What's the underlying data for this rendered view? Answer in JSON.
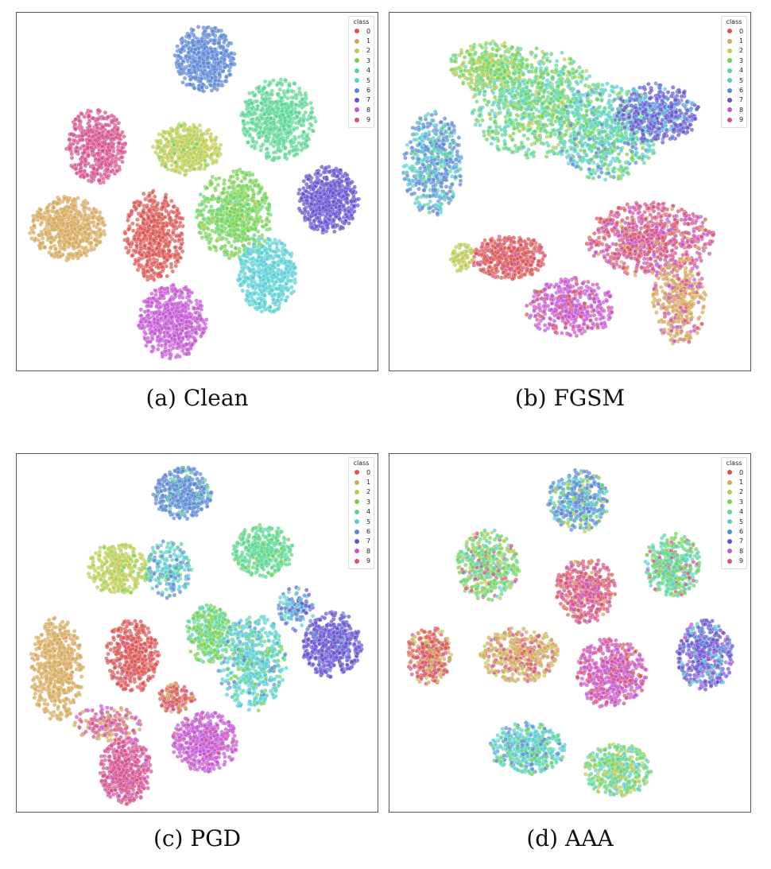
{
  "chart_data": [
    {
      "type": "scatter",
      "caption": "(a) Clean",
      "legend": {
        "title": "class",
        "placement": "top-right"
      },
      "clusters": [
        {
          "cls": 6,
          "cx": 0.52,
          "cy": 0.13,
          "rx": 0.08,
          "ry": 0.09,
          "n": 520,
          "mix": [
            [
              6,
              1
            ]
          ]
        },
        {
          "cls": 4,
          "cx": 0.72,
          "cy": 0.3,
          "rx": 0.1,
          "ry": 0.11,
          "n": 600,
          "mix": [
            [
              4,
              1
            ]
          ]
        },
        {
          "cls": 9,
          "cx": 0.22,
          "cy": 0.37,
          "rx": 0.08,
          "ry": 0.1,
          "n": 500,
          "mix": [
            [
              9,
              1
            ]
          ]
        },
        {
          "cls": 2,
          "cx": 0.47,
          "cy": 0.38,
          "rx": 0.09,
          "ry": 0.07,
          "n": 500,
          "mix": [
            [
              2,
              0.92
            ],
            [
              3,
              0.08
            ]
          ]
        },
        {
          "cls": 7,
          "cx": 0.86,
          "cy": 0.52,
          "rx": 0.08,
          "ry": 0.09,
          "n": 560,
          "mix": [
            [
              7,
              1
            ]
          ]
        },
        {
          "cls": 1,
          "cx": 0.14,
          "cy": 0.6,
          "rx": 0.1,
          "ry": 0.085,
          "n": 600,
          "mix": [
            [
              1,
              1
            ]
          ]
        },
        {
          "cls": 0,
          "cx": 0.38,
          "cy": 0.62,
          "rx": 0.08,
          "ry": 0.12,
          "n": 560,
          "mix": [
            [
              0,
              1
            ]
          ]
        },
        {
          "cls": 3,
          "cx": 0.6,
          "cy": 0.56,
          "rx": 0.1,
          "ry": 0.12,
          "n": 620,
          "mix": [
            [
              3,
              0.85
            ],
            [
              4,
              0.1
            ],
            [
              2,
              0.05
            ]
          ]
        },
        {
          "cls": 5,
          "cx": 0.69,
          "cy": 0.73,
          "rx": 0.08,
          "ry": 0.1,
          "n": 500,
          "mix": [
            [
              5,
              1
            ]
          ]
        },
        {
          "cls": 8,
          "cx": 0.43,
          "cy": 0.86,
          "rx": 0.09,
          "ry": 0.1,
          "n": 620,
          "mix": [
            [
              8,
              1
            ]
          ]
        }
      ]
    },
    {
      "type": "scatter",
      "caption": "(b) FGSM",
      "legend": {
        "title": "class",
        "placement": "top-right"
      },
      "clusters": [
        {
          "cls": 4,
          "cx": 0.4,
          "cy": 0.25,
          "rx": 0.17,
          "ry": 0.15,
          "n": 900,
          "mix": [
            [
              4,
              0.35
            ],
            [
              3,
              0.3
            ],
            [
              5,
              0.2
            ],
            [
              2,
              0.15
            ]
          ]
        },
        {
          "cls": 5,
          "cx": 0.6,
          "cy": 0.33,
          "rx": 0.14,
          "ry": 0.13,
          "n": 700,
          "mix": [
            [
              5,
              0.35
            ],
            [
              4,
              0.3
            ],
            [
              3,
              0.2
            ],
            [
              6,
              0.15
            ]
          ]
        },
        {
          "cls": 6,
          "cx": 0.12,
          "cy": 0.42,
          "rx": 0.08,
          "ry": 0.14,
          "n": 500,
          "mix": [
            [
              6,
              0.6
            ],
            [
              5,
              0.25
            ],
            [
              4,
              0.15
            ]
          ]
        },
        {
          "cls": 7,
          "cx": 0.74,
          "cy": 0.28,
          "rx": 0.11,
          "ry": 0.08,
          "n": 450,
          "mix": [
            [
              7,
              0.6
            ],
            [
              6,
              0.25
            ],
            [
              5,
              0.15
            ]
          ]
        },
        {
          "cls": 0,
          "cx": 0.33,
          "cy": 0.68,
          "rx": 0.1,
          "ry": 0.06,
          "n": 400,
          "mix": [
            [
              0,
              0.8
            ],
            [
              9,
              0.2
            ]
          ]
        },
        {
          "cls": 9,
          "cx": 0.72,
          "cy": 0.63,
          "rx": 0.17,
          "ry": 0.1,
          "n": 800,
          "mix": [
            [
              9,
              0.5
            ],
            [
              0,
              0.2
            ],
            [
              8,
              0.2
            ],
            [
              1,
              0.1
            ]
          ]
        },
        {
          "cls": 8,
          "cx": 0.5,
          "cy": 0.82,
          "rx": 0.12,
          "ry": 0.08,
          "n": 450,
          "mix": [
            [
              8,
              0.75
            ],
            [
              9,
              0.15
            ],
            [
              0,
              0.1
            ]
          ]
        },
        {
          "cls": 1,
          "cx": 0.8,
          "cy": 0.8,
          "rx": 0.07,
          "ry": 0.12,
          "n": 400,
          "mix": [
            [
              1,
              0.75
            ],
            [
              9,
              0.15
            ],
            [
              8,
              0.1
            ]
          ]
        },
        {
          "cls": 2,
          "cx": 0.2,
          "cy": 0.68,
          "rx": 0.03,
          "ry": 0.04,
          "n": 80,
          "mix": [
            [
              2,
              1
            ]
          ]
        },
        {
          "cls": 3,
          "cx": 0.27,
          "cy": 0.15,
          "rx": 0.1,
          "ry": 0.07,
          "n": 300,
          "mix": [
            [
              3,
              0.5
            ],
            [
              2,
              0.3
            ],
            [
              4,
              0.2
            ]
          ]
        }
      ]
    },
    {
      "type": "scatter",
      "caption": "(c) PGD",
      "legend": {
        "title": "class",
        "placement": "top-right"
      },
      "clusters": [
        {
          "cls": 6,
          "cx": 0.46,
          "cy": 0.11,
          "rx": 0.08,
          "ry": 0.07,
          "n": 420,
          "mix": [
            [
              6,
              0.9
            ],
            [
              4,
              0.1
            ]
          ]
        },
        {
          "cls": 4,
          "cx": 0.68,
          "cy": 0.27,
          "rx": 0.08,
          "ry": 0.07,
          "n": 400,
          "mix": [
            [
              4,
              0.85
            ],
            [
              3,
              0.15
            ]
          ]
        },
        {
          "cls": 2,
          "cx": 0.28,
          "cy": 0.32,
          "rx": 0.08,
          "ry": 0.07,
          "n": 360,
          "mix": [
            [
              2,
              0.9
            ],
            [
              3,
              0.1
            ]
          ]
        },
        {
          "cls": 5,
          "cx": 0.42,
          "cy": 0.32,
          "rx": 0.06,
          "ry": 0.08,
          "n": 200,
          "mix": [
            [
              5,
              0.4
            ],
            [
              6,
              0.3
            ],
            [
              4,
              0.3
            ]
          ]
        },
        {
          "cls": 7,
          "cx": 0.87,
          "cy": 0.53,
          "rx": 0.08,
          "ry": 0.09,
          "n": 500,
          "mix": [
            [
              7,
              0.9
            ],
            [
              6,
              0.1
            ]
          ]
        },
        {
          "cls": 1,
          "cx": 0.11,
          "cy": 0.6,
          "rx": 0.07,
          "ry": 0.14,
          "n": 560,
          "mix": [
            [
              1,
              1
            ]
          ]
        },
        {
          "cls": 0,
          "cx": 0.32,
          "cy": 0.56,
          "rx": 0.07,
          "ry": 0.1,
          "n": 440,
          "mix": [
            [
              0,
              0.9
            ],
            [
              9,
              0.1
            ]
          ]
        },
        {
          "cls": 3,
          "cx": 0.53,
          "cy": 0.5,
          "rx": 0.06,
          "ry": 0.08,
          "n": 300,
          "mix": [
            [
              3,
              0.6
            ],
            [
              4,
              0.25
            ],
            [
              5,
              0.15
            ]
          ]
        },
        {
          "cls": 5,
          "cx": 0.65,
          "cy": 0.58,
          "rx": 0.09,
          "ry": 0.13,
          "n": 560,
          "mix": [
            [
              5,
              0.55
            ],
            [
              4,
              0.2
            ],
            [
              3,
              0.15
            ],
            [
              6,
              0.1
            ]
          ]
        },
        {
          "cls": 8,
          "cx": 0.52,
          "cy": 0.8,
          "rx": 0.09,
          "ry": 0.08,
          "n": 480,
          "mix": [
            [
              8,
              0.9
            ],
            [
              9,
              0.1
            ]
          ]
        },
        {
          "cls": 9,
          "cx": 0.3,
          "cy": 0.88,
          "rx": 0.07,
          "ry": 0.09,
          "n": 480,
          "mix": [
            [
              9,
              0.9
            ],
            [
              8,
              0.1
            ]
          ]
        },
        {
          "cls": 0,
          "cx": 0.44,
          "cy": 0.68,
          "rx": 0.05,
          "ry": 0.04,
          "n": 140,
          "mix": [
            [
              0,
              0.6
            ],
            [
              1,
              0.2
            ],
            [
              9,
              0.2
            ]
          ]
        },
        {
          "cls": 9,
          "cx": 0.25,
          "cy": 0.75,
          "rx": 0.09,
          "ry": 0.05,
          "n": 160,
          "mix": [
            [
              9,
              0.5
            ],
            [
              1,
              0.3
            ],
            [
              8,
              0.2
            ]
          ]
        },
        {
          "cls": 5,
          "cx": 0.77,
          "cy": 0.43,
          "rx": 0.05,
          "ry": 0.06,
          "n": 120,
          "mix": [
            [
              5,
              0.4
            ],
            [
              7,
              0.3
            ],
            [
              6,
              0.3
            ]
          ]
        }
      ]
    },
    {
      "type": "scatter",
      "caption": "(d) AAA",
      "legend": {
        "title": "class",
        "placement": "top-right"
      },
      "clusters": [
        {
          "cls": 6,
          "cx": 0.52,
          "cy": 0.13,
          "rx": 0.08,
          "ry": 0.085,
          "n": 420,
          "mix": [
            [
              6,
              0.6
            ],
            [
              5,
              0.15
            ],
            [
              4,
              0.1
            ],
            [
              3,
              0.08
            ],
            [
              2,
              0.07
            ]
          ]
        },
        {
          "cls": 3,
          "cx": 0.27,
          "cy": 0.31,
          "rx": 0.085,
          "ry": 0.095,
          "n": 460,
          "mix": [
            [
              3,
              0.35
            ],
            [
              4,
              0.25
            ],
            [
              2,
              0.2
            ],
            [
              9,
              0.1
            ],
            [
              5,
              0.1
            ]
          ]
        },
        {
          "cls": 4,
          "cx": 0.78,
          "cy": 0.31,
          "rx": 0.075,
          "ry": 0.085,
          "n": 420,
          "mix": [
            [
              4,
              0.4
            ],
            [
              3,
              0.3
            ],
            [
              5,
              0.15
            ],
            [
              9,
              0.15
            ]
          ]
        },
        {
          "cls": 9,
          "cx": 0.54,
          "cy": 0.38,
          "rx": 0.08,
          "ry": 0.09,
          "n": 460,
          "mix": [
            [
              9,
              0.6
            ],
            [
              0,
              0.2
            ],
            [
              8,
              0.1
            ],
            [
              1,
              0.1
            ]
          ]
        },
        {
          "cls": 0,
          "cx": 0.11,
          "cy": 0.56,
          "rx": 0.06,
          "ry": 0.08,
          "n": 320,
          "mix": [
            [
              0,
              0.55
            ],
            [
              9,
              0.2
            ],
            [
              1,
              0.15
            ],
            [
              2,
              0.1
            ]
          ]
        },
        {
          "cls": 1,
          "cx": 0.36,
          "cy": 0.56,
          "rx": 0.105,
          "ry": 0.075,
          "n": 440,
          "mix": [
            [
              1,
              0.55
            ],
            [
              9,
              0.2
            ],
            [
              2,
              0.15
            ],
            [
              0,
              0.1
            ]
          ]
        },
        {
          "cls": 8,
          "cx": 0.61,
          "cy": 0.61,
          "rx": 0.095,
          "ry": 0.095,
          "n": 520,
          "mix": [
            [
              8,
              0.55
            ],
            [
              9,
              0.35
            ],
            [
              0,
              0.1
            ]
          ]
        },
        {
          "cls": 7,
          "cx": 0.87,
          "cy": 0.56,
          "rx": 0.075,
          "ry": 0.095,
          "n": 460,
          "mix": [
            [
              7,
              0.55
            ],
            [
              6,
              0.25
            ],
            [
              8,
              0.1
            ],
            [
              5,
              0.1
            ]
          ]
        },
        {
          "cls": 5,
          "cx": 0.38,
          "cy": 0.82,
          "rx": 0.1,
          "ry": 0.07,
          "n": 460,
          "mix": [
            [
              5,
              0.45
            ],
            [
              4,
              0.25
            ],
            [
              3,
              0.15
            ],
            [
              6,
              0.15
            ]
          ]
        },
        {
          "cls": 2,
          "cx": 0.63,
          "cy": 0.88,
          "rx": 0.09,
          "ry": 0.07,
          "n": 420,
          "mix": [
            [
              2,
              0.3
            ],
            [
              4,
              0.3
            ],
            [
              5,
              0.2
            ],
            [
              3,
              0.2
            ]
          ]
        }
      ]
    }
  ],
  "legend_classes": [
    "0",
    "1",
    "2",
    "3",
    "4",
    "5",
    "6",
    "7",
    "8",
    "9"
  ],
  "palette": [
    "#d9534f",
    "#d4a75a",
    "#bccc52",
    "#73d152",
    "#59d692",
    "#56cfd4",
    "#5a86d4",
    "#6650d0",
    "#c356d3",
    "#d4508a"
  ]
}
